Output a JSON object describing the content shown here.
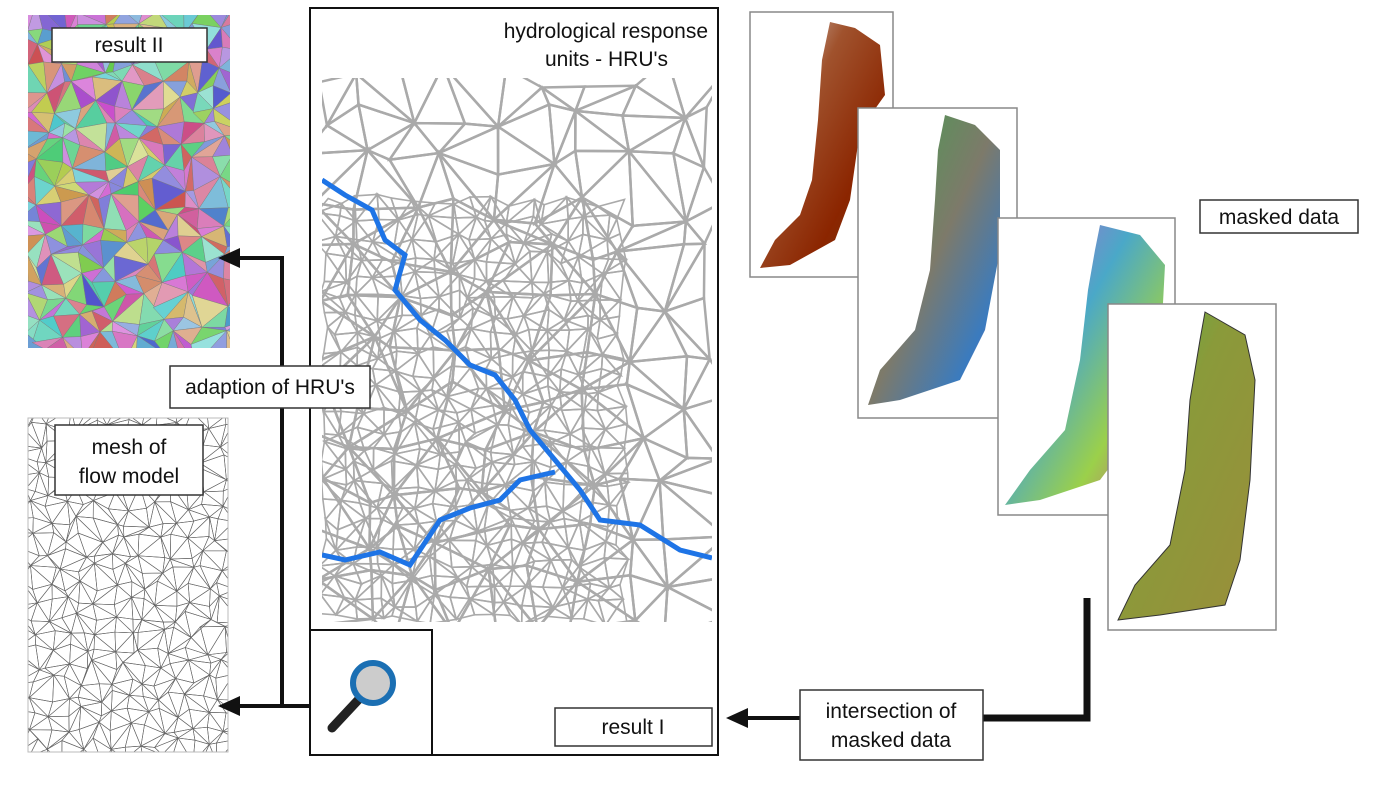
{
  "panels": {
    "result_2": "result II",
    "hru": [
      "hydrological response",
      "units - HRU's"
    ],
    "mesh": [
      "mesh of",
      "flow model"
    ],
    "result_1": "result I",
    "masked_data": "masked data"
  },
  "arrows": {
    "adaption": "adaption of HRU's",
    "intersection": [
      "intersection of",
      "masked data"
    ]
  }
}
